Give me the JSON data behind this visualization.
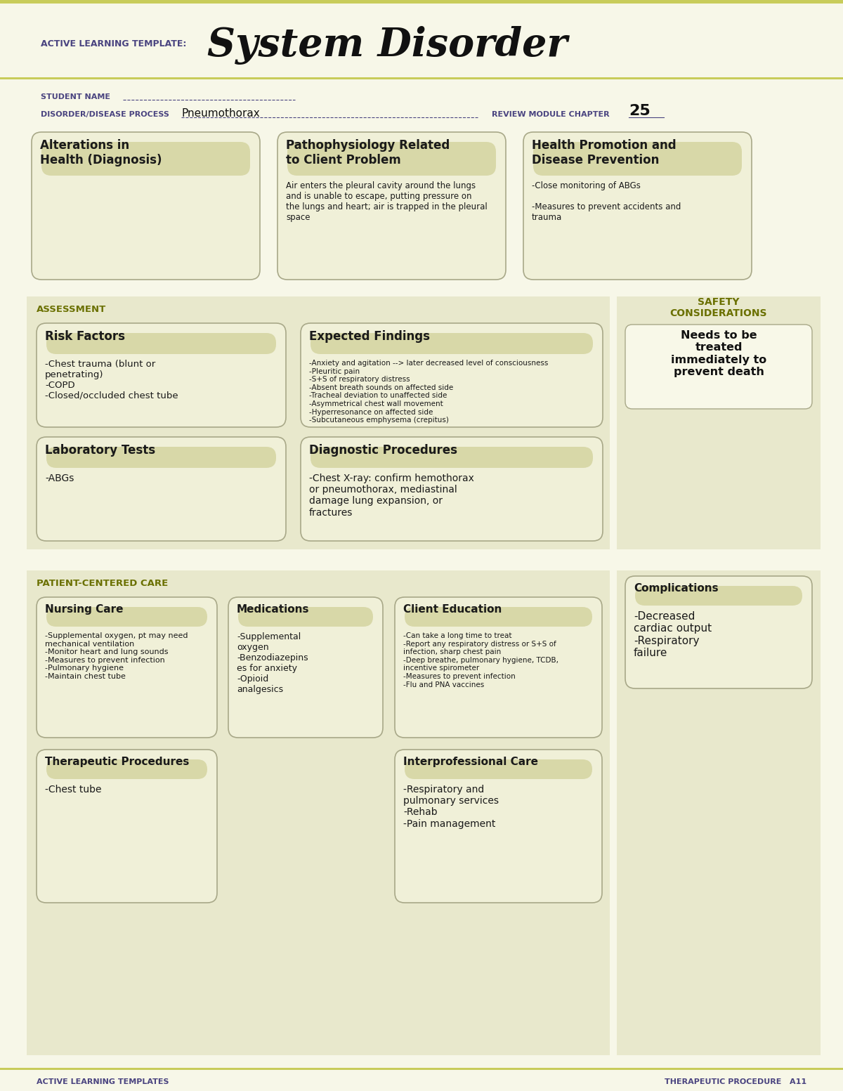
{
  "bg_color": "#f7f7e8",
  "page_bg": "#ffffff",
  "header_bar_color": "#c8cc5a",
  "section_bg": "#e8e8cc",
  "box_bg": "#f0f0d8",
  "box_title_bg": "#d8d8a8",
  "box_border": "#a8a888",
  "dark_text": "#4a4480",
  "olive_text": "#6a7000",
  "black_text": "#1a1a1a",
  "title_prefix": "ACTIVE LEARNING TEMPLATE:",
  "title_main": "System Disorder",
  "student_name_label": "STUDENT NAME",
  "disorder_label": "DISORDER/DISEASE PROCESS",
  "disorder_value": "Pneumothorax",
  "review_label": "REVIEW MODULE CHAPTER",
  "review_value": "25",
  "top_boxes": [
    {
      "title": "Alterations in\nHealth (Diagnosis)",
      "content": ""
    },
    {
      "title": "Pathophysiology Related\nto Client Problem",
      "content": "Air enters the pleural cavity around the lungs\nand is unable to escape, putting pressure on\nthe lungs and heart; air is trapped in the pleural\nspace"
    },
    {
      "title": "Health Promotion and\nDisease Prevention",
      "content": "-Close monitoring of ABGs\n\n-Measures to prevent accidents and\ntrauma"
    }
  ],
  "assessment_label": "ASSESSMENT",
  "safety_label": "SAFETY\nCONSIDERATIONS",
  "safety_content": "Needs to be\ntreated\nimmediately to\nprevent death",
  "assessment_boxes": [
    {
      "title": "Risk Factors",
      "content": "-Chest trauma (blunt or\npenetrating)\n-COPD\n-Closed/occluded chest tube"
    },
    {
      "title": "Expected Findings",
      "content": "-Anxiety and agitation --> later decreased level of consciousness\n-Pleuritic pain\n-S+S of respiratory distress\n-Absent breath sounds on affected side\n-Tracheal deviation to unaffected side\n-Asymmetrical chest wall movement\n-Hyperresonance on affected side\n-Subcutaneous emphysema (crepitus)"
    }
  ],
  "lab_diag_boxes": [
    {
      "title": "Laboratory Tests",
      "content": "-ABGs"
    },
    {
      "title": "Diagnostic Procedures",
      "content": "-Chest X-ray: confirm hemothorax\nor pneumothorax, mediastinal\ndamage lung expansion, or\nfractures"
    }
  ],
  "patient_care_label": "PATIENT-CENTERED CARE",
  "complications_title": "Complications",
  "complications_content": "-Decreased\ncardiac output\n-Respiratory\nfailure",
  "care_boxes": [
    {
      "title": "Nursing Care",
      "content": "-Supplemental oxygen, pt may need\nmechanical ventilation\n-Monitor heart and lung sounds\n-Measures to prevent infection\n-Pulmonary hygiene\n-Maintain chest tube"
    },
    {
      "title": "Medications",
      "content": "-Supplemental\noxygen\n-Benzodiazepins\nes for anxiety\n-Opioid\nanalgesics"
    },
    {
      "title": "Client Education",
      "content": "-Can take a long time to treat\n-Report any respiratory distress or S+S of\ninfection, sharp chest pain\n-Deep breathe, pulmonary hygiene, TCDB,\nincentive spirometer\n-Measures to prevent infection\n-Flu and PNA vaccines"
    }
  ],
  "therapy_boxes": [
    {
      "title": "Therapeutic Procedures",
      "content": "-Chest tube"
    },
    {
      "title": "Interprofessional Care",
      "content": "-Respiratory and\npulmonary services\n-Rehab\n-Pain management"
    }
  ],
  "footer_left": "ACTIVE LEARNING TEMPLATES",
  "footer_right": "THERAPEUTIC PROCEDURE   A11"
}
